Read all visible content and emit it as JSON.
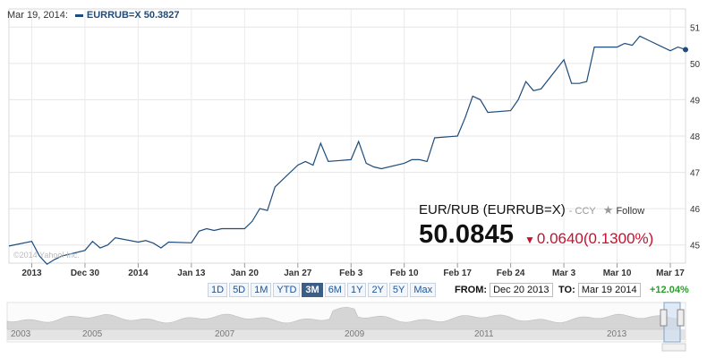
{
  "legend": {
    "date": "Mar 19, 2014:",
    "symbol": "EURRUB=X",
    "value": "50.3827"
  },
  "quote": {
    "name": "EUR/RUB (EURRUB=X)",
    "ccy": "- CCY",
    "follow": "Follow",
    "price": "50.0845",
    "change": "0.0640",
    "change_pct": "(0.1300%)"
  },
  "periods": [
    {
      "label": "1D",
      "active": false
    },
    {
      "label": "5D",
      "active": false
    },
    {
      "label": "1M",
      "active": false
    },
    {
      "label": "YTD",
      "active": false
    },
    {
      "label": "3M",
      "active": true
    },
    {
      "label": "6M",
      "active": false
    },
    {
      "label": "1Y",
      "active": false
    },
    {
      "label": "2Y",
      "active": false
    },
    {
      "label": "5Y",
      "active": false
    },
    {
      "label": "Max",
      "active": false
    }
  ],
  "range": {
    "from_label": "FROM:",
    "from_value": "Dec 20 2013",
    "to_label": "TO:",
    "to_value": "Mar 19 2014",
    "pct": "+12.04%"
  },
  "watermark": "©2014 Yahoo! Inc.",
  "navigator_years": [
    "2003",
    "2005",
    "2007",
    "2009",
    "2011",
    "2013"
  ],
  "colors": {
    "line": "#1e4c7c",
    "down": "#c8102e",
    "up": "#2a9d2a",
    "active_tab": "#3b5e88"
  },
  "chart_data": {
    "type": "line",
    "title": "",
    "xlabel": "",
    "ylabel": "",
    "ylim": [
      44.5,
      51.5
    ],
    "y_ticks": [
      45,
      46,
      47,
      48,
      49,
      50,
      51
    ],
    "x_tick_labels": [
      "2013",
      "Dec 30",
      "2014",
      "Jan 13",
      "Jan 20",
      "Jan 27",
      "Feb 3",
      "Feb 10",
      "Feb 17",
      "Feb 24",
      "Mar 3",
      "Mar 10",
      "Mar 17"
    ],
    "series": [
      {
        "name": "EURRUB=X",
        "x": [
          "2013-12-20",
          "2013-12-23",
          "2013-12-24",
          "2013-12-25",
          "2013-12-26",
          "2013-12-27",
          "2013-12-30",
          "2013-12-31",
          "2014-01-01",
          "2014-01-02",
          "2014-01-03",
          "2014-01-06",
          "2014-01-07",
          "2014-01-08",
          "2014-01-09",
          "2014-01-10",
          "2014-01-13",
          "2014-01-14",
          "2014-01-15",
          "2014-01-16",
          "2014-01-17",
          "2014-01-20",
          "2014-01-21",
          "2014-01-22",
          "2014-01-23",
          "2014-01-24",
          "2014-01-27",
          "2014-01-28",
          "2014-01-29",
          "2014-01-30",
          "2014-01-31",
          "2014-02-03",
          "2014-02-04",
          "2014-02-05",
          "2014-02-06",
          "2014-02-07",
          "2014-02-10",
          "2014-02-11",
          "2014-02-12",
          "2014-02-13",
          "2014-02-14",
          "2014-02-17",
          "2014-02-18",
          "2014-02-19",
          "2014-02-20",
          "2014-02-21",
          "2014-02-24",
          "2014-02-25",
          "2014-02-26",
          "2014-02-27",
          "2014-02-28",
          "2014-03-03",
          "2014-03-04",
          "2014-03-05",
          "2014-03-06",
          "2014-03-07",
          "2014-03-10",
          "2014-03-11",
          "2014-03-12",
          "2014-03-13",
          "2014-03-14",
          "2014-03-17",
          "2014-03-18",
          "2014-03-19"
        ],
        "values": [
          44.97,
          45.1,
          44.7,
          44.47,
          44.6,
          44.7,
          44.85,
          45.1,
          44.92,
          45.0,
          45.2,
          45.08,
          45.12,
          45.05,
          44.92,
          45.08,
          45.06,
          45.38,
          45.45,
          45.4,
          45.45,
          45.45,
          45.65,
          46.0,
          45.95,
          46.6,
          47.2,
          47.3,
          47.2,
          47.8,
          47.3,
          47.35,
          47.85,
          47.25,
          47.15,
          47.1,
          47.25,
          47.35,
          47.35,
          47.3,
          47.95,
          48.0,
          48.5,
          49.1,
          49.0,
          48.65,
          48.7,
          49.0,
          49.5,
          49.25,
          49.3,
          50.1,
          49.45,
          49.45,
          49.5,
          50.45,
          50.45,
          50.55,
          50.5,
          50.75,
          50.65,
          50.35,
          50.45,
          50.38
        ]
      }
    ]
  }
}
